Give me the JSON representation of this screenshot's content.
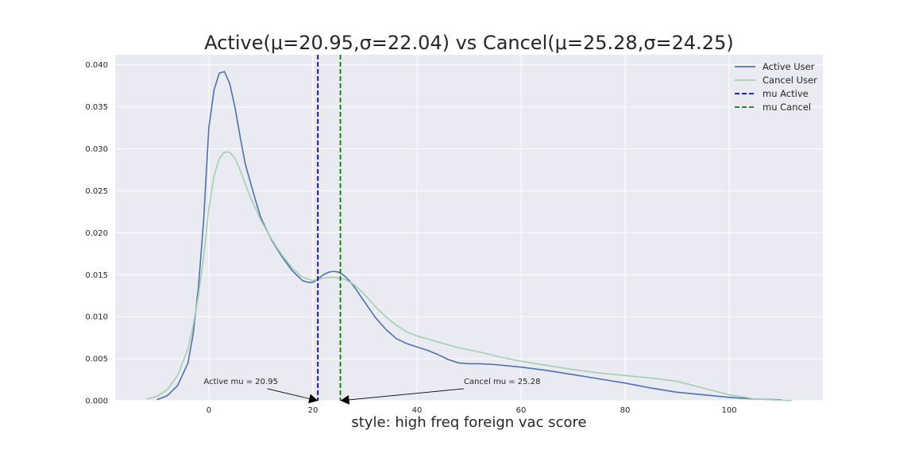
{
  "chart_data": {
    "type": "line",
    "title": "Active(μ=20.95,σ=22.04) vs Cancel(μ=25.28,σ=24.25)",
    "xlabel": "style: high freq foreign vac score",
    "ylabel": "",
    "xlim": [
      -18,
      118
    ],
    "ylim": [
      0,
      0.0412
    ],
    "grid": true,
    "legend_position": "top-right",
    "xticks": [
      0,
      20,
      40,
      60,
      80,
      100
    ],
    "yticks": [
      0.0,
      0.005,
      0.01,
      0.015,
      0.02,
      0.025,
      0.03,
      0.035,
      0.04
    ],
    "ytick_labels": [
      "0.000",
      "0.005",
      "0.010",
      "0.015",
      "0.020",
      "0.025",
      "0.030",
      "0.035",
      "0.040"
    ],
    "series": [
      {
        "name": "Active User",
        "color": "#4c72b0",
        "style": "solid",
        "x": [
          -10,
          -8,
          -6,
          -4,
          -3,
          -2,
          -1,
          0,
          1,
          2,
          3,
          4,
          5,
          6,
          7,
          8,
          9,
          10,
          12,
          14,
          16,
          18,
          19,
          20,
          21,
          22,
          23,
          24,
          25,
          26,
          27,
          28,
          30,
          32,
          34,
          36,
          38,
          40,
          42,
          44,
          46,
          48,
          50,
          52,
          55,
          60,
          65,
          70,
          75,
          80,
          85,
          90,
          95,
          100,
          105,
          110
        ],
        "y": [
          0.0001,
          0.0006,
          0.0018,
          0.0045,
          0.008,
          0.0135,
          0.0215,
          0.0325,
          0.037,
          0.039,
          0.0392,
          0.0378,
          0.035,
          0.0315,
          0.0282,
          0.026,
          0.0238,
          0.0218,
          0.0192,
          0.0172,
          0.0155,
          0.0143,
          0.0141,
          0.0141,
          0.0145,
          0.015,
          0.0153,
          0.0154,
          0.0153,
          0.0149,
          0.0143,
          0.0135,
          0.0117,
          0.0099,
          0.0085,
          0.0074,
          0.0068,
          0.0064,
          0.006,
          0.0055,
          0.0049,
          0.0045,
          0.0044,
          0.0044,
          0.0043,
          0.004,
          0.0036,
          0.0031,
          0.0026,
          0.0021,
          0.0015,
          0.001,
          0.0007,
          0.0004,
          0.0002,
          0.0001
        ]
      },
      {
        "name": "Cancel User",
        "color": "#a2cfad",
        "style": "solid",
        "x": [
          -12,
          -10,
          -8,
          -6,
          -4,
          -3,
          -2,
          -1,
          0,
          1,
          2,
          3,
          4,
          5,
          6,
          7,
          8,
          10,
          12,
          14,
          16,
          18,
          20,
          22,
          24,
          26,
          28,
          30,
          32,
          34,
          36,
          38,
          40,
          44,
          48,
          52,
          56,
          60,
          65,
          70,
          75,
          80,
          85,
          90,
          95,
          100,
          105,
          112
        ],
        "y": [
          0.0002,
          0.0005,
          0.0013,
          0.003,
          0.0062,
          0.009,
          0.0125,
          0.0172,
          0.0228,
          0.0268,
          0.0288,
          0.0296,
          0.0296,
          0.0289,
          0.0275,
          0.0258,
          0.0242,
          0.0215,
          0.0193,
          0.0174,
          0.0158,
          0.0147,
          0.0143,
          0.0146,
          0.0147,
          0.0145,
          0.0138,
          0.0126,
          0.0112,
          0.01,
          0.009,
          0.0082,
          0.0077,
          0.007,
          0.0063,
          0.0058,
          0.0052,
          0.0047,
          0.0042,
          0.0037,
          0.0033,
          0.003,
          0.0027,
          0.0023,
          0.0015,
          0.0007,
          0.0002,
          0.0
        ]
      }
    ],
    "vlines": [
      {
        "name": "mu Active",
        "x": 20.95,
        "color": "#0000ee",
        "style": "dashed"
      },
      {
        "name": "mu Cancel",
        "x": 25.28,
        "color": "#008000",
        "style": "dashed"
      }
    ],
    "annotations": [
      {
        "text": "Active mu = 20.95",
        "text_x": -1,
        "text_y": 0.0018,
        "target_x": 20.95,
        "target_y": 0.0
      },
      {
        "text": "Cancel mu = 25.28",
        "text_x": 49,
        "text_y": 0.0018,
        "target_x": 25.28,
        "target_y": 0.0
      }
    ]
  }
}
